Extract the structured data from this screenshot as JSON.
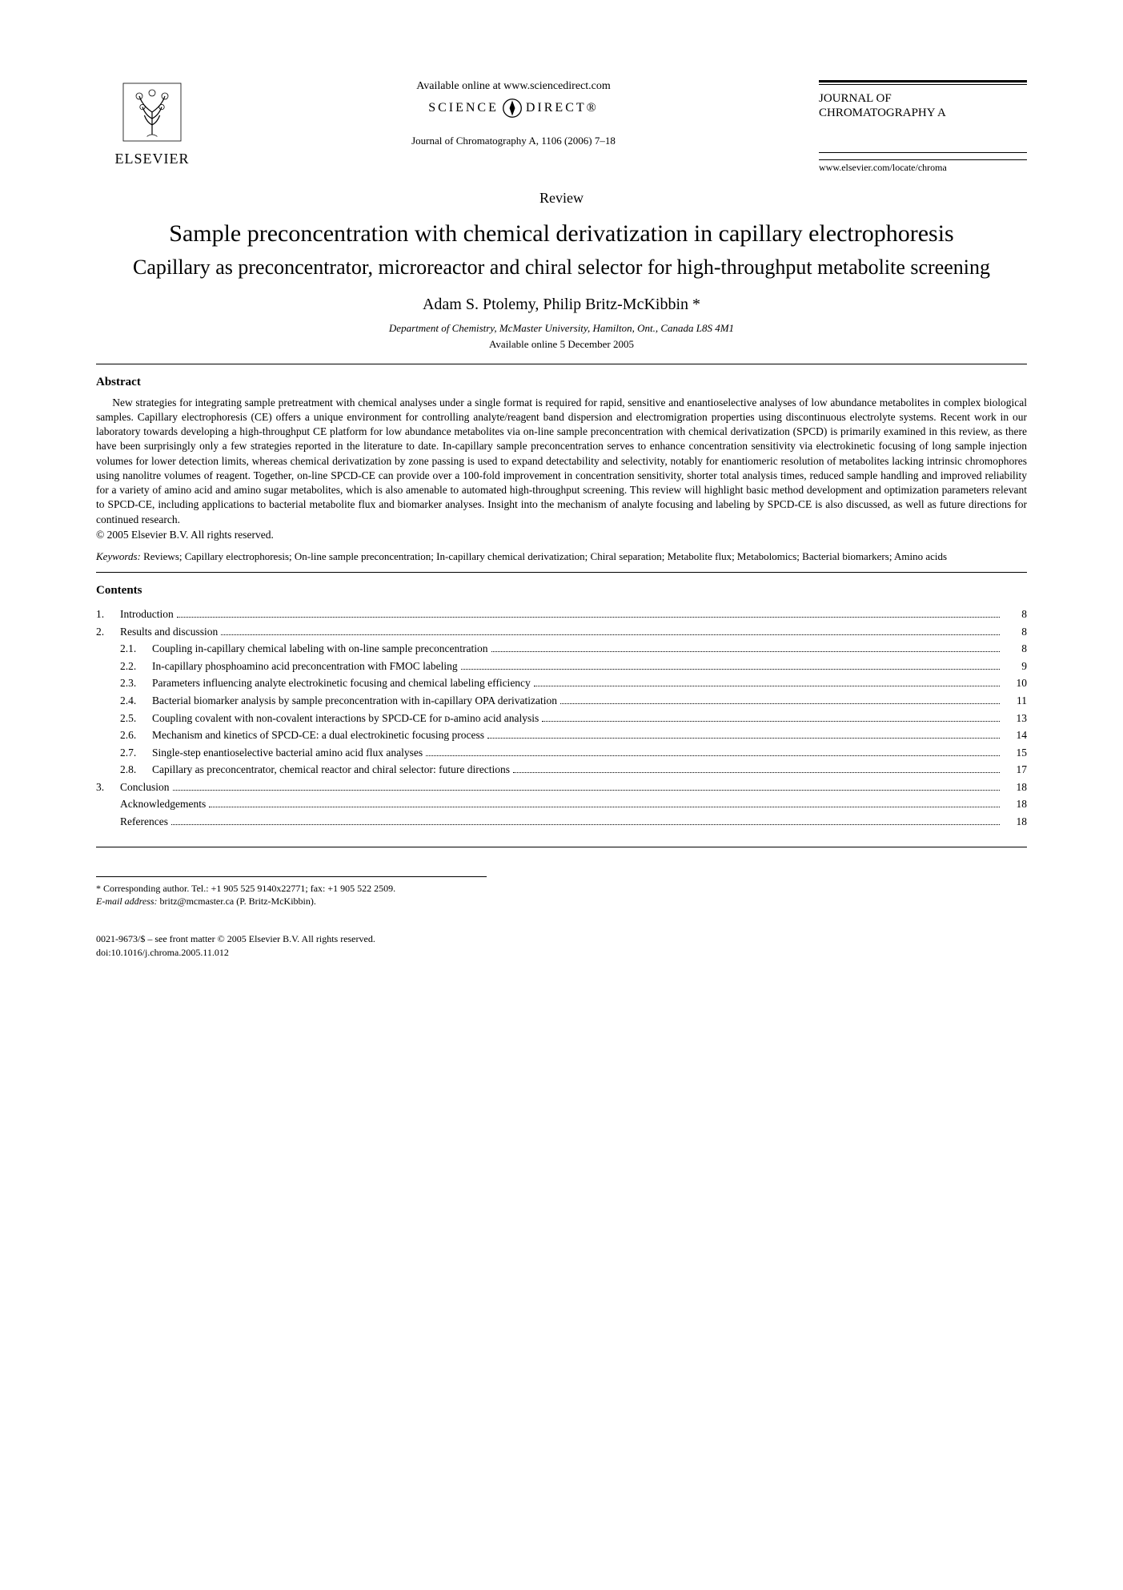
{
  "header": {
    "publisher": "ELSEVIER",
    "available_online": "Available online at www.sciencedirect.com",
    "sciencedirect_left": "SCIENCE",
    "sciencedirect_right": "DIRECT®",
    "citation": "Journal of Chromatography A, 1106 (2006) 7–18",
    "journal_name_line1": "JOURNAL OF",
    "journal_name_line2": "CHROMATOGRAPHY A",
    "journal_url": "www.elsevier.com/locate/chroma"
  },
  "article": {
    "type": "Review",
    "title": "Sample preconcentration with chemical derivatization in capillary electrophoresis",
    "subtitle": "Capillary as preconcentrator, microreactor and chiral selector for high-throughput metabolite screening",
    "authors": "Adam S. Ptolemy, Philip Britz-McKibbin *",
    "affiliation": "Department of Chemistry, McMaster University, Hamilton, Ont., Canada L8S 4M1",
    "available_date": "Available online 5 December 2005"
  },
  "abstract": {
    "heading": "Abstract",
    "text": "New strategies for integrating sample pretreatment with chemical analyses under a single format is required for rapid, sensitive and enantioselective analyses of low abundance metabolites in complex biological samples. Capillary electrophoresis (CE) offers a unique environment for controlling analyte/reagent band dispersion and electromigration properties using discontinuous electrolyte systems. Recent work in our laboratory towards developing a high-throughput CE platform for low abundance metabolites via on-line sample preconcentration with chemical derivatization (SPCD) is primarily examined in this review, as there have been surprisingly only a few strategies reported in the literature to date. In-capillary sample preconcentration serves to enhance concentration sensitivity via electrokinetic focusing of long sample injection volumes for lower detection limits, whereas chemical derivatization by zone passing is used to expand detectability and selectivity, notably for enantiomeric resolution of metabolites lacking intrinsic chromophores using nanolitre volumes of reagent. Together, on-line SPCD-CE can provide over a 100-fold improvement in concentration sensitivity, shorter total analysis times, reduced sample handling and improved reliability for a variety of amino acid and amino sugar metabolites, which is also amenable to automated high-throughput screening. This review will highlight basic method development and optimization parameters relevant to SPCD-CE, including applications to bacterial metabolite flux and biomarker analyses. Insight into the mechanism of analyte focusing and labeling by SPCD-CE is also discussed, as well as future directions for continued research.",
    "copyright": "© 2005 Elsevier B.V. All rights reserved."
  },
  "keywords": {
    "label": "Keywords:",
    "text": "Reviews; Capillary electrophoresis; On-line sample preconcentration; In-capillary chemical derivatization; Chiral separation; Metabolite flux; Metabolomics; Bacterial biomarkers; Amino acids"
  },
  "contents": {
    "heading": "Contents",
    "items": [
      {
        "level": 1,
        "num": "1.",
        "title": "Introduction",
        "page": "8"
      },
      {
        "level": 1,
        "num": "2.",
        "title": "Results and discussion",
        "page": "8"
      },
      {
        "level": 2,
        "num": "2.1.",
        "title": "Coupling in-capillary chemical labeling with on-line sample preconcentration",
        "page": "8"
      },
      {
        "level": 2,
        "num": "2.2.",
        "title": "In-capillary phosphoamino acid preconcentration with FMOC labeling",
        "page": "9"
      },
      {
        "level": 2,
        "num": "2.3.",
        "title": "Parameters influencing analyte electrokinetic focusing and chemical labeling efficiency",
        "page": "10"
      },
      {
        "level": 2,
        "num": "2.4.",
        "title": "Bacterial biomarker analysis by sample preconcentration with in-capillary OPA derivatization",
        "page": "11"
      },
      {
        "level": 2,
        "num": "2.5.",
        "title": "Coupling covalent with non-covalent interactions by SPCD-CE for ᴅ-amino acid analysis",
        "page": "13"
      },
      {
        "level": 2,
        "num": "2.6.",
        "title": "Mechanism and kinetics of SPCD-CE: a dual electrokinetic focusing process",
        "page": "14"
      },
      {
        "level": 2,
        "num": "2.7.",
        "title": "Single-step enantioselective bacterial amino acid flux analyses",
        "page": "15"
      },
      {
        "level": 2,
        "num": "2.8.",
        "title": "Capillary as preconcentrator, chemical reactor and chiral selector: future directions",
        "page": "17"
      },
      {
        "level": 1,
        "num": "3.",
        "title": "Conclusion",
        "page": "18"
      },
      {
        "level": 0,
        "num": "",
        "title": "Acknowledgements",
        "page": "18"
      },
      {
        "level": 0,
        "num": "",
        "title": "References",
        "page": "18"
      }
    ]
  },
  "footnotes": {
    "corresponding": "* Corresponding author. Tel.: +1 905 525 9140x22771; fax: +1 905 522 2509.",
    "email_label": "E-mail address:",
    "email": "britz@mcmaster.ca (P. Britz-McKibbin)."
  },
  "footer": {
    "line1": "0021-9673/$ – see front matter © 2005 Elsevier B.V. All rights reserved.",
    "line2": "doi:10.1016/j.chroma.2005.11.012"
  }
}
